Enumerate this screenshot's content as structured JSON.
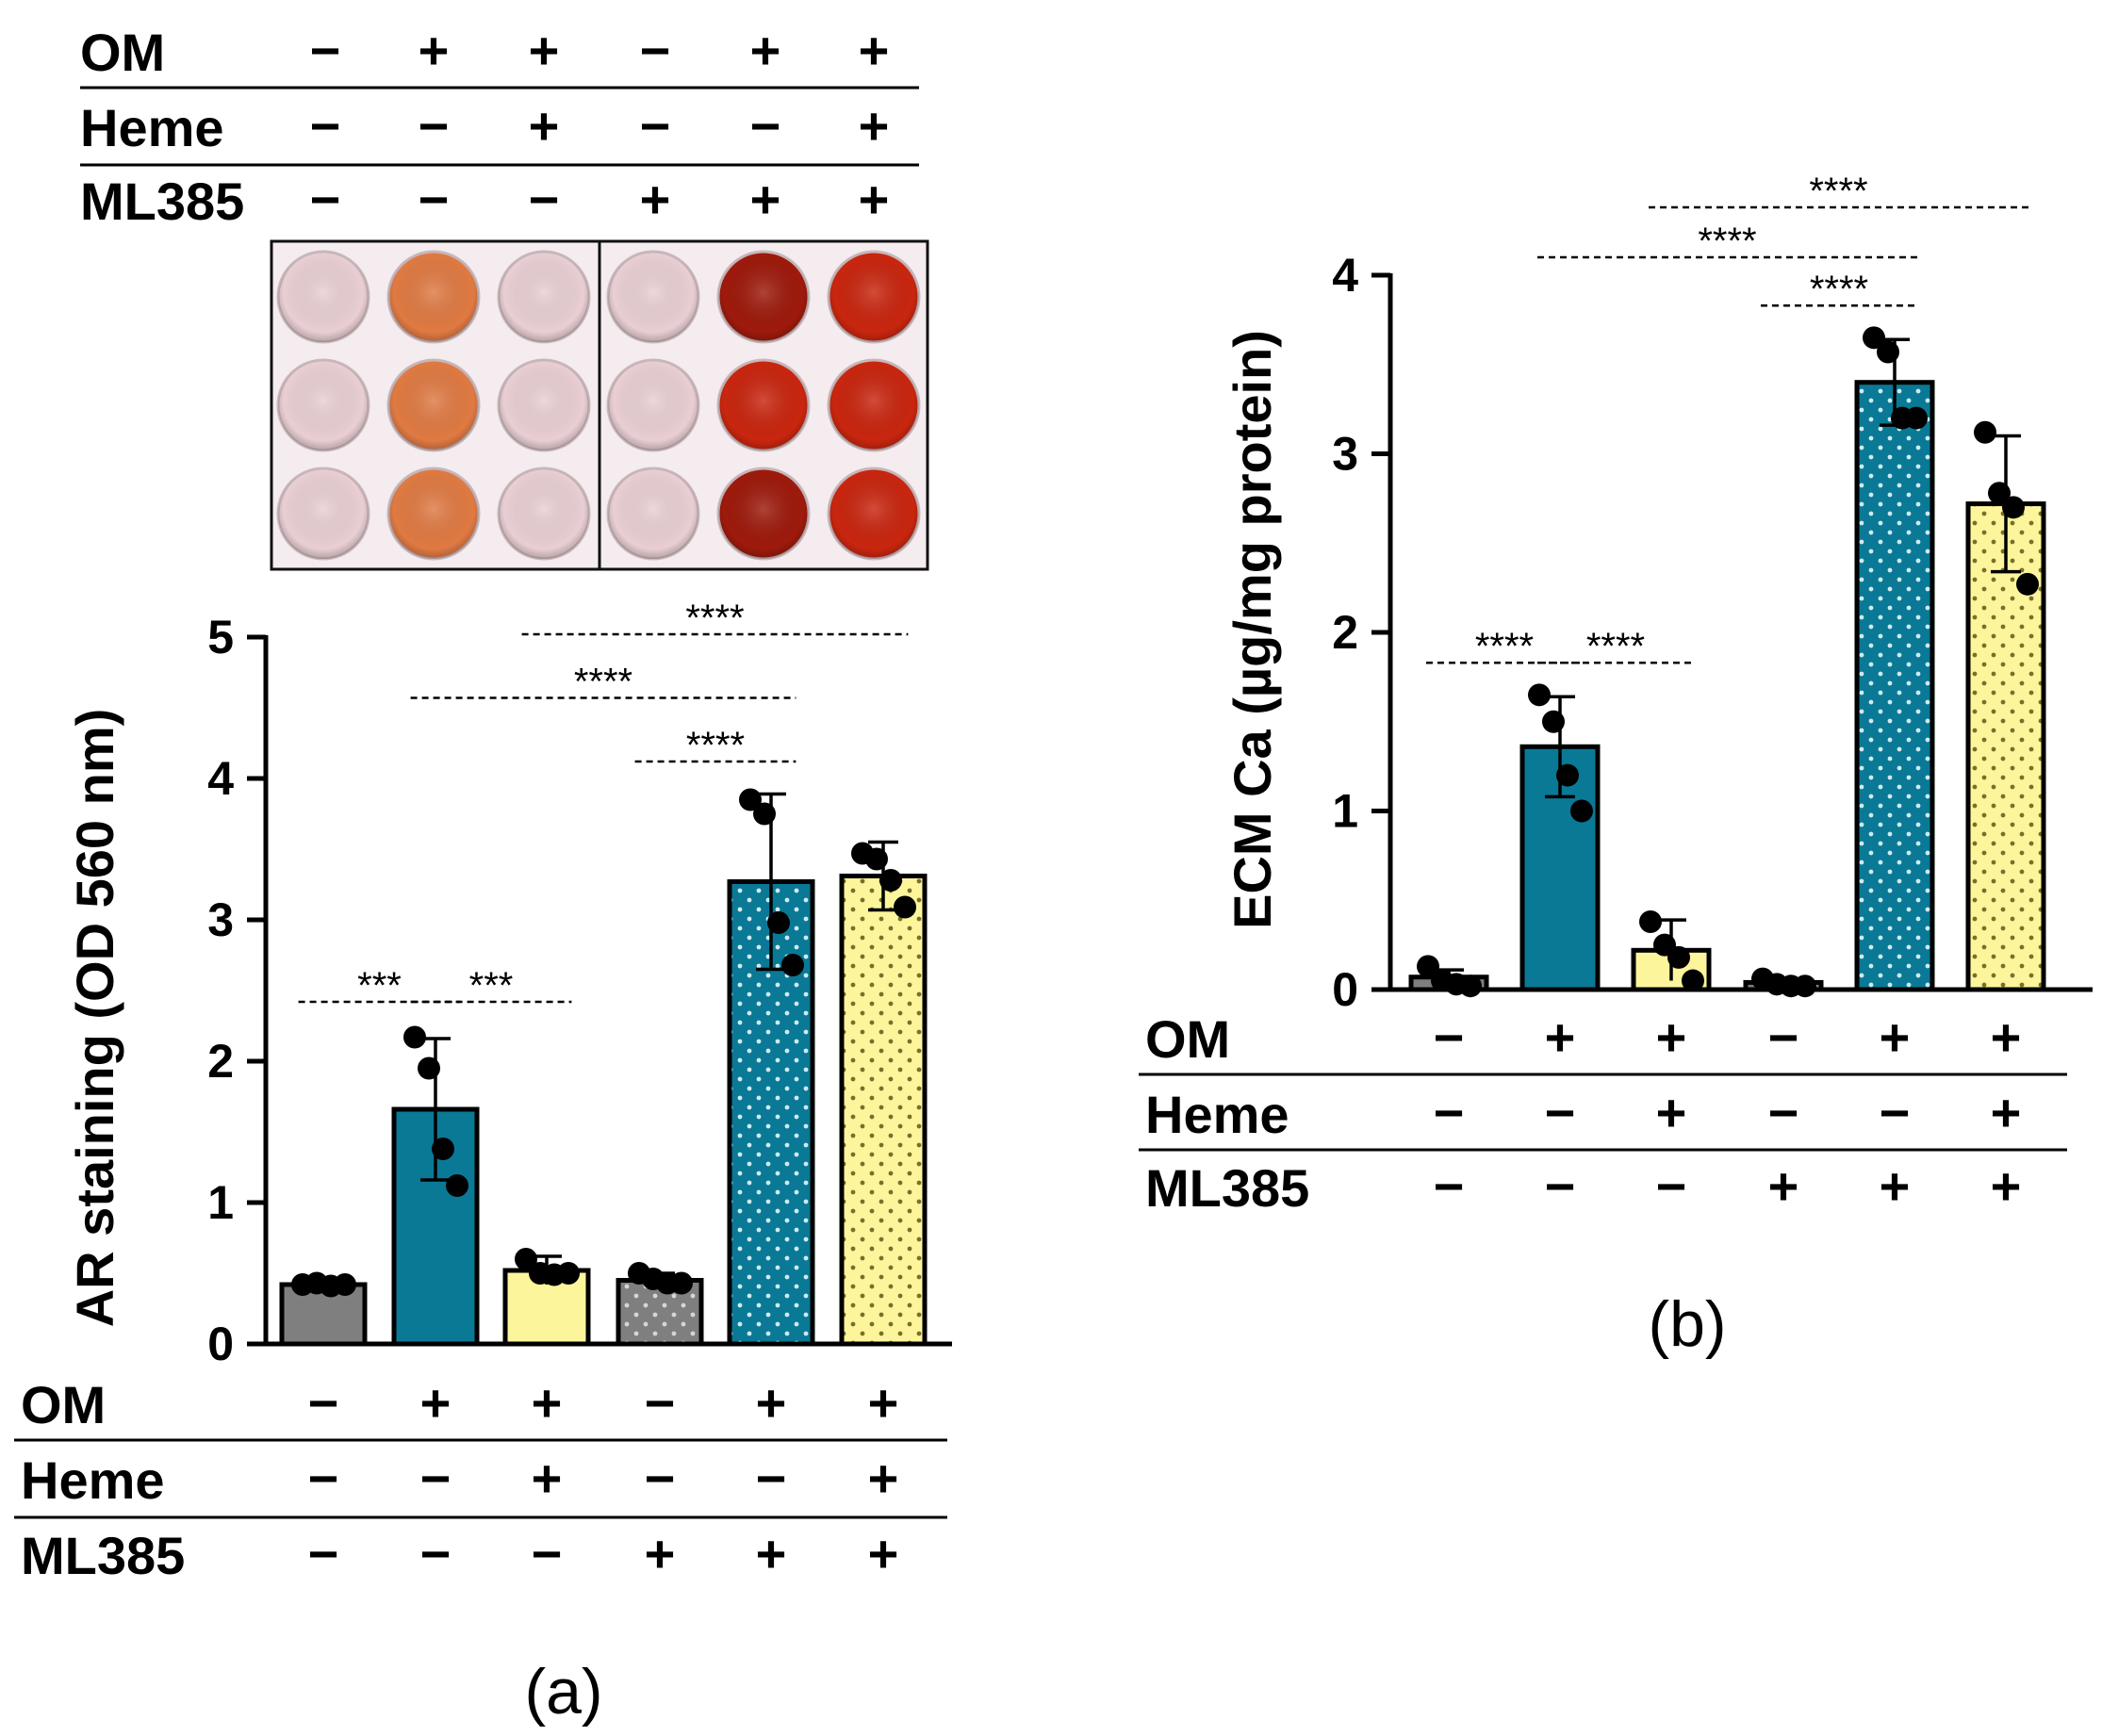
{
  "colors": {
    "gray": "#7f7f7f",
    "teal": "#0a7995",
    "yellow": "#fdf59b",
    "dot_gray": "#d6d6d6",
    "dot_teal": "#cfeaf2",
    "dot_yellow": "#7a6f2a",
    "well_pale": "#e9cfd3",
    "well_orange": "#e07a43",
    "well_dark_red": "#9e1a0c",
    "well_red": "#c9260f"
  },
  "conditions": {
    "rows": [
      {
        "label": "OM",
        "values": [
          "−",
          "+",
          "+",
          "−",
          "+",
          "+"
        ]
      },
      {
        "label": "Heme",
        "values": [
          "−",
          "−",
          "+",
          "−",
          "−",
          "+"
        ]
      },
      {
        "label": "ML385",
        "values": [
          "−",
          "−",
          "−",
          "+",
          "+",
          "+"
        ]
      }
    ]
  },
  "plate": {
    "wells": [
      [
        "well_pale",
        "well_orange",
        "well_pale",
        "well_pale",
        "well_dark_red",
        "well_red"
      ],
      [
        "well_pale",
        "well_orange",
        "well_pale",
        "well_pale",
        "well_red",
        "well_red"
      ],
      [
        "well_pale",
        "well_orange",
        "well_pale",
        "well_pale",
        "well_dark_red",
        "well_red"
      ]
    ]
  },
  "chart_data": [
    {
      "type": "bar",
      "panel_label": "(a)",
      "ylabel": "AR staining (OD 560 nm)",
      "ylim": [
        0,
        5
      ],
      "yticks": [
        "0",
        "1",
        "2",
        "3",
        "4",
        "5"
      ],
      "fills": [
        "gray",
        "teal",
        "yellow",
        "gray",
        "teal",
        "yellow"
      ],
      "dotted": [
        false,
        false,
        false,
        true,
        true,
        true
      ],
      "values": [
        0.42,
        1.66,
        0.52,
        0.45,
        3.27,
        3.31
      ],
      "errors": [
        0.03,
        0.5,
        0.1,
        0.05,
        0.62,
        0.24
      ],
      "points": [
        [
          0.42,
          0.43,
          0.41,
          0.42
        ],
        [
          2.17,
          1.95,
          1.38,
          1.12
        ],
        [
          0.6,
          0.5,
          0.49,
          0.5
        ],
        [
          0.5,
          0.46,
          0.43,
          0.43
        ],
        [
          3.85,
          3.75,
          2.98,
          2.68
        ],
        [
          3.47,
          3.43,
          3.28,
          3.09
        ]
      ],
      "significance": [
        {
          "from": 0,
          "to": 1,
          "y": 2.42,
          "label": "***"
        },
        {
          "from": 1,
          "to": 2,
          "y": 2.42,
          "label": "***"
        },
        {
          "from": 3,
          "to": 4,
          "y": 4.12,
          "label": "****"
        },
        {
          "from": 1,
          "to": 4,
          "y": 4.57,
          "label": "****"
        },
        {
          "from": 2,
          "to": 5,
          "y": 5.02,
          "label": "****"
        }
      ]
    },
    {
      "type": "bar",
      "panel_label": "(b)",
      "ylabel": "ECM Ca (µg/mg protein)",
      "ylim": [
        0,
        4
      ],
      "yticks": [
        "0",
        "1",
        "2",
        "3",
        "4"
      ],
      "fills": [
        "gray",
        "teal",
        "yellow",
        "gray",
        "teal",
        "yellow"
      ],
      "dotted": [
        false,
        false,
        false,
        true,
        true,
        true
      ],
      "values": [
        0.07,
        1.36,
        0.22,
        0.04,
        3.4,
        2.72
      ],
      "errors": [
        0.04,
        0.28,
        0.17,
        0.02,
        0.24,
        0.38
      ],
      "points": [
        [
          0.13,
          0.05,
          0.03,
          0.02
        ],
        [
          1.65,
          1.5,
          1.2,
          1.0
        ],
        [
          0.38,
          0.25,
          0.18,
          0.05
        ],
        [
          0.06,
          0.03,
          0.02,
          0.02
        ],
        [
          3.65,
          3.57,
          3.2,
          3.2
        ],
        [
          3.12,
          2.78,
          2.7,
          2.27
        ]
      ],
      "significance": [
        {
          "from": 0,
          "to": 1,
          "y": 1.83,
          "label": "****"
        },
        {
          "from": 1,
          "to": 2,
          "y": 1.83,
          "label": "****"
        },
        {
          "from": 3,
          "to": 4,
          "y": 3.83,
          "label": "****"
        },
        {
          "from": 1,
          "to": 4,
          "y": 4.1,
          "label": "****"
        },
        {
          "from": 2,
          "to": 5,
          "y": 4.38,
          "label": "****"
        }
      ]
    }
  ]
}
